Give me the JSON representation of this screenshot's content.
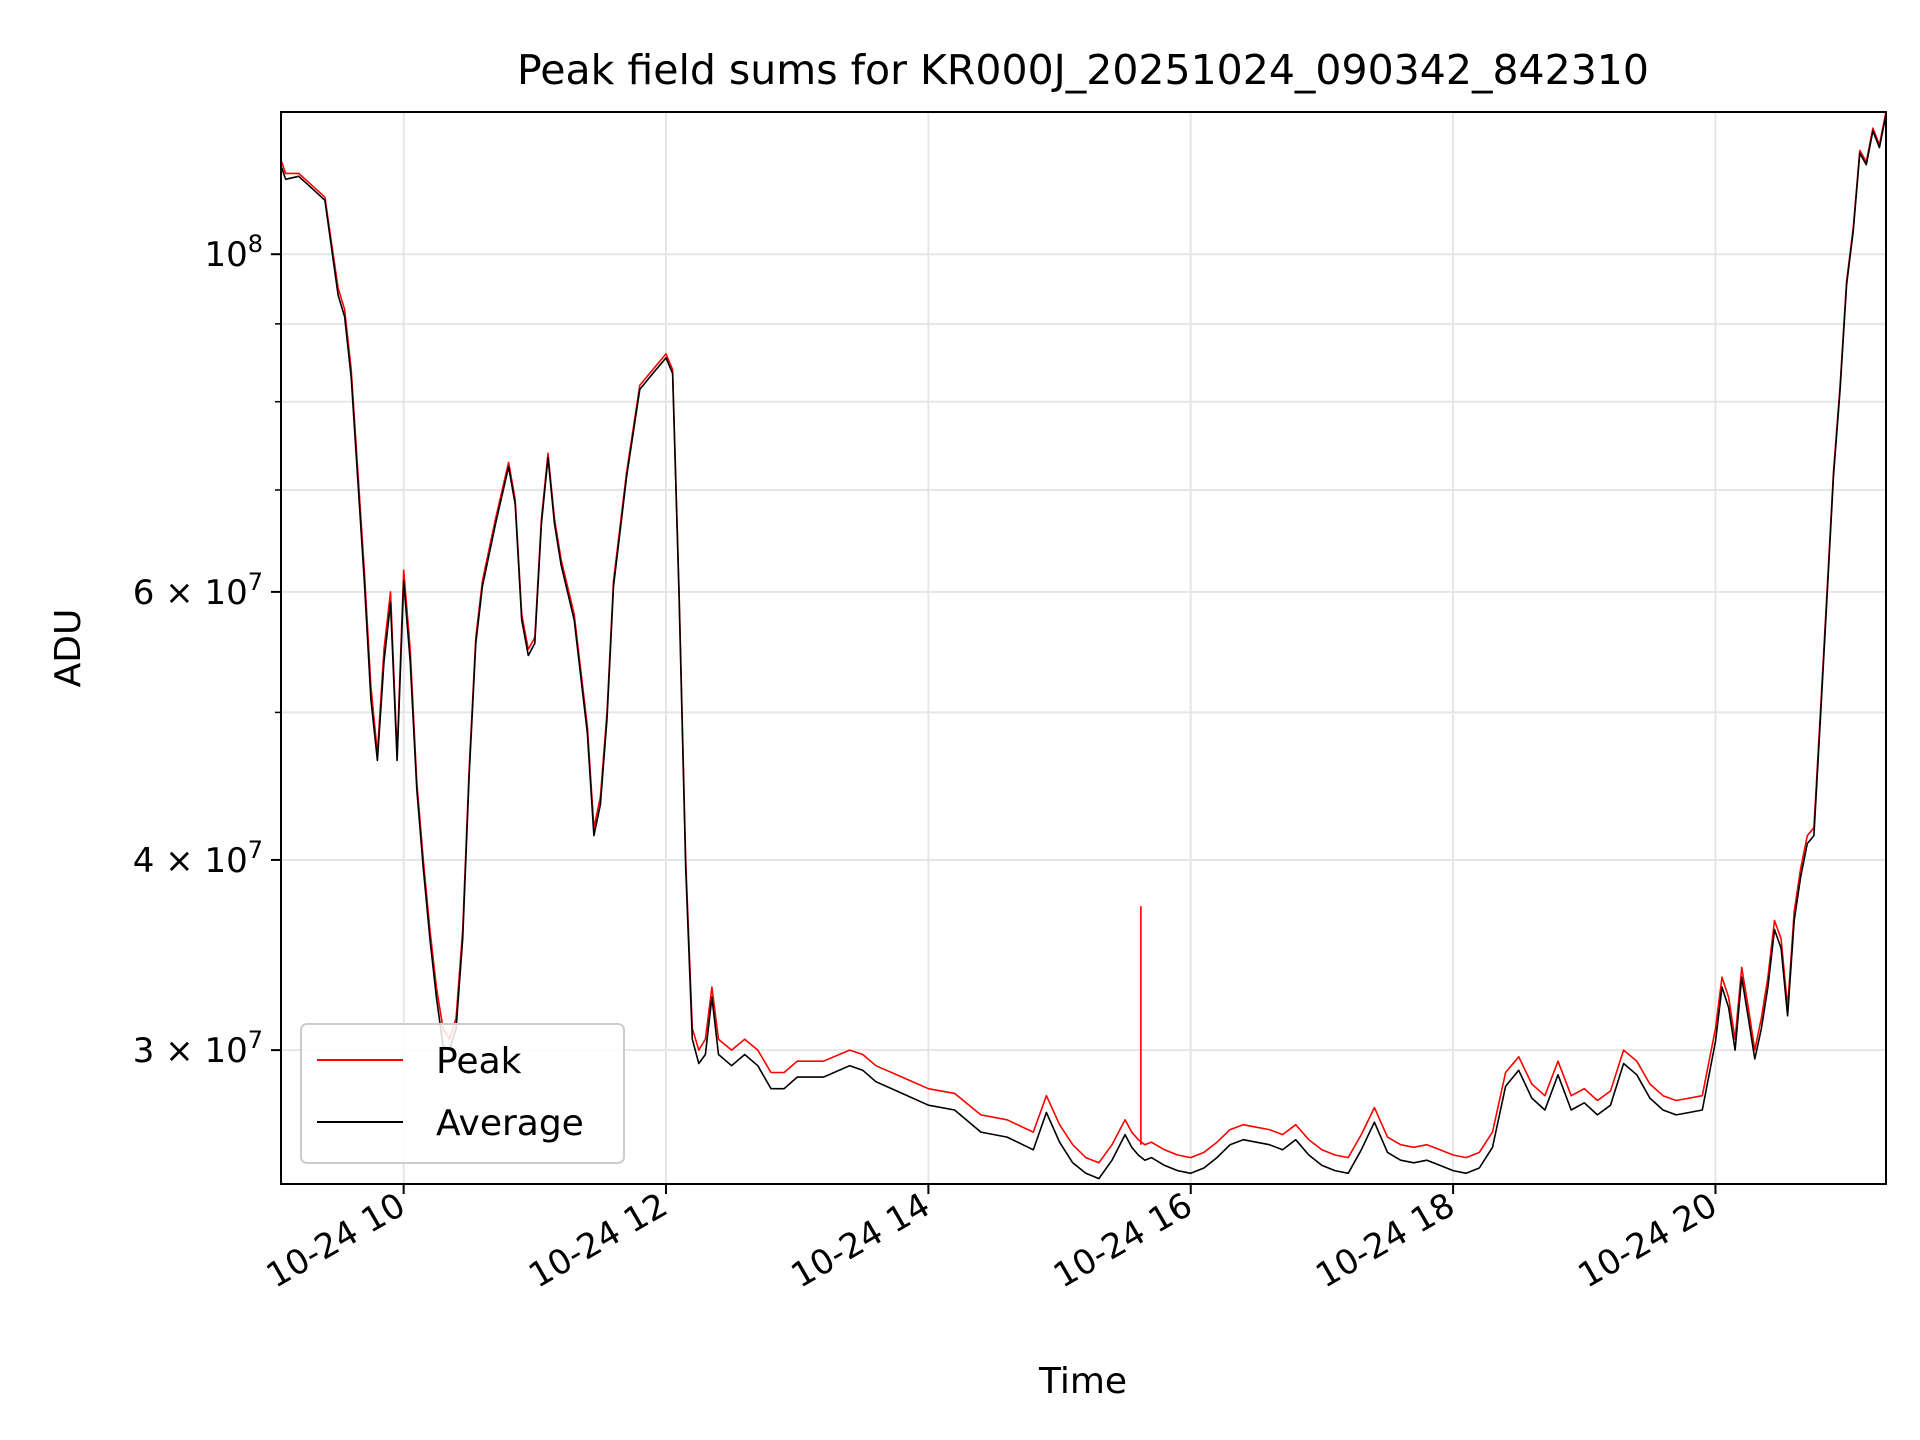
{
  "chart_data": {
    "type": "line",
    "title": "Peak field sums for KR000J_20251024_090342_842310",
    "xlabel": "Time",
    "ylabel": "ADU",
    "yscale": "log",
    "xlim_hours": [
      9.065,
      21.3
    ],
    "ylim": [
      24500000,
      124000000
    ],
    "grid": true,
    "legend_position": "lower-left",
    "x_ticks": [
      {
        "hour": 10,
        "label": "10-24 10"
      },
      {
        "hour": 12,
        "label": "10-24 12"
      },
      {
        "hour": 14,
        "label": "10-24 14"
      },
      {
        "hour": 16,
        "label": "10-24 16"
      },
      {
        "hour": 18,
        "label": "10-24 18"
      },
      {
        "hour": 20,
        "label": "10-24 20"
      }
    ],
    "y_major_ticks": [
      {
        "value": 100000000,
        "base": "10",
        "exp": "8"
      },
      {
        "value": 60000000,
        "base": "6 × 10",
        "exp": "7"
      },
      {
        "value": 40000000,
        "base": "4 × 10",
        "exp": "7"
      },
      {
        "value": 30000000,
        "base": "3 × 10",
        "exp": "7"
      }
    ],
    "y_minor_ticks": [
      90000000,
      80000000,
      70000000,
      50000000
    ],
    "series": [
      {
        "name": "Peak",
        "color": "#ff0000",
        "x": [
          9.07,
          9.1,
          9.2,
          9.3,
          9.4,
          9.5,
          9.55,
          9.6,
          9.7,
          9.75,
          9.8,
          9.85,
          9.9,
          9.95,
          10.0,
          10.05,
          10.1,
          10.15,
          10.2,
          10.25,
          10.3,
          10.35,
          10.4,
          10.45,
          10.5,
          10.55,
          10.6,
          10.7,
          10.8,
          10.85,
          10.9,
          10.95,
          11.0,
          11.05,
          11.1,
          11.15,
          11.2,
          11.3,
          11.4,
          11.45,
          11.5,
          11.55,
          11.6,
          11.7,
          11.8,
          11.9,
          12.0,
          12.05,
          12.1,
          12.15,
          12.2,
          12.25,
          12.3,
          12.35,
          12.4,
          12.5,
          12.6,
          12.7,
          12.8,
          12.9,
          13.0,
          13.2,
          13.4,
          13.5,
          13.6,
          13.8,
          14.0,
          14.2,
          14.4,
          14.6,
          14.8,
          14.9,
          15.0,
          15.1,
          15.2,
          15.3,
          15.4,
          15.5,
          15.55,
          15.6,
          15.65,
          15.7,
          15.8,
          15.9,
          16.0,
          16.1,
          16.2,
          16.3,
          16.4,
          16.5,
          16.6,
          16.7,
          16.8,
          16.9,
          17.0,
          17.1,
          17.2,
          17.3,
          17.4,
          17.5,
          17.6,
          17.7,
          17.8,
          17.9,
          18.0,
          18.1,
          18.2,
          18.3,
          18.4,
          18.5,
          18.6,
          18.7,
          18.8,
          18.9,
          19.0,
          19.1,
          19.2,
          19.3,
          19.4,
          19.5,
          19.6,
          19.7,
          19.8,
          19.9,
          20.0,
          20.05,
          20.1,
          20.15,
          20.2,
          20.25,
          20.3,
          20.35,
          20.4,
          20.45,
          20.5,
          20.55,
          20.6,
          20.65,
          20.7,
          20.75,
          20.8,
          20.85,
          20.9,
          20.95,
          21.0,
          21.05,
          21.1,
          21.15,
          21.2,
          21.25,
          21.3
        ],
        "values": [
          115000000,
          113000000,
          113000000,
          111000000,
          109000000,
          95000000,
          92000000,
          84000000,
          62000000,
          52000000,
          47000000,
          55000000,
          60000000,
          47000000,
          62000000,
          55000000,
          45000000,
          40000000,
          36000000,
          33000000,
          31000000,
          30500000,
          31500000,
          36000000,
          46000000,
          56000000,
          61000000,
          67000000,
          73000000,
          69000000,
          58000000,
          55000000,
          56000000,
          67000000,
          74000000,
          67000000,
          63000000,
          58000000,
          49000000,
          42000000,
          44000000,
          50000000,
          61000000,
          72000000,
          82000000,
          84000000,
          86000000,
          84000000,
          60000000,
          40000000,
          31000000,
          30000000,
          30500000,
          33000000,
          30500000,
          30000000,
          30500000,
          30000000,
          29000000,
          29000000,
          29500000,
          29500000,
          30000000,
          29800000,
          29300000,
          28800000,
          28300000,
          28100000,
          27200000,
          27000000,
          26500000,
          28000000,
          26800000,
          26000000,
          25500000,
          25300000,
          26000000,
          27000000,
          26500000,
          26200000,
          26000000,
          26100000,
          25800000,
          25600000,
          25500000,
          25700000,
          26100000,
          26600000,
          26800000,
          26700000,
          26600000,
          26400000,
          26800000,
          26200000,
          25800000,
          25600000,
          25500000,
          26400000,
          27500000,
          26300000,
          26000000,
          25900000,
          26000000,
          25800000,
          25600000,
          25500000,
          25700000,
          26500000,
          29000000,
          29700000,
          28500000,
          28000000,
          29500000,
          28000000,
          28300000,
          27800000,
          28200000,
          30000000,
          29500000,
          28500000,
          28000000,
          27800000,
          27900000,
          28000000,
          31000000,
          33500000,
          32500000,
          30500000,
          34000000,
          32000000,
          30000000,
          31500000,
          33500000,
          36500000,
          35500000,
          32000000,
          37000000,
          39500000,
          41500000,
          42000000,
          50000000,
          60000000,
          72000000,
          82000000,
          96000000,
          104000000,
          117000000,
          115000000,
          121000000,
          118000000,
          124000000
        ]
      },
      {
        "name": "Average",
        "color": "#000000",
        "x": [
          9.07,
          9.1,
          9.2,
          9.3,
          9.4,
          9.5,
          9.55,
          9.6,
          9.7,
          9.75,
          9.8,
          9.85,
          9.9,
          9.95,
          10.0,
          10.05,
          10.1,
          10.15,
          10.2,
          10.25,
          10.3,
          10.35,
          10.4,
          10.45,
          10.5,
          10.55,
          10.6,
          10.7,
          10.8,
          10.85,
          10.9,
          10.95,
          11.0,
          11.05,
          11.1,
          11.15,
          11.2,
          11.3,
          11.4,
          11.45,
          11.5,
          11.55,
          11.6,
          11.7,
          11.8,
          11.9,
          12.0,
          12.05,
          12.1,
          12.15,
          12.2,
          12.25,
          12.3,
          12.35,
          12.4,
          12.5,
          12.6,
          12.7,
          12.8,
          12.9,
          13.0,
          13.2,
          13.4,
          13.5,
          13.6,
          13.8,
          14.0,
          14.2,
          14.4,
          14.6,
          14.8,
          14.9,
          15.0,
          15.1,
          15.2,
          15.3,
          15.4,
          15.5,
          15.55,
          15.6,
          15.65,
          15.7,
          15.8,
          15.9,
          16.0,
          16.1,
          16.2,
          16.3,
          16.4,
          16.5,
          16.6,
          16.7,
          16.8,
          16.9,
          17.0,
          17.1,
          17.2,
          17.3,
          17.4,
          17.5,
          17.6,
          17.7,
          17.8,
          17.9,
          18.0,
          18.1,
          18.2,
          18.3,
          18.4,
          18.5,
          18.6,
          18.7,
          18.8,
          18.9,
          19.0,
          19.1,
          19.2,
          19.3,
          19.4,
          19.5,
          19.6,
          19.7,
          19.8,
          19.9,
          20.0,
          20.05,
          20.1,
          20.15,
          20.2,
          20.25,
          20.3,
          20.35,
          20.4,
          20.45,
          20.5,
          20.55,
          20.6,
          20.65,
          20.7,
          20.75,
          20.8,
          20.85,
          20.9,
          20.95,
          21.0,
          21.05,
          21.1,
          21.15,
          21.2,
          21.25,
          21.3
        ],
        "values": [
          114000000,
          112000000,
          112500000,
          110500000,
          108500000,
          94000000,
          91000000,
          83000000,
          61000000,
          51000000,
          46500000,
          54000000,
          59000000,
          46500000,
          61000000,
          54000000,
          44500000,
          39500000,
          35500000,
          32500000,
          30200000,
          30000000,
          31000000,
          35500000,
          45500000,
          55500000,
          60500000,
          66500000,
          72500000,
          68500000,
          57500000,
          54500000,
          55500000,
          66500000,
          73500000,
          66500000,
          62500000,
          57500000,
          48500000,
          41500000,
          43500000,
          49500000,
          60500000,
          71500000,
          81500000,
          83500000,
          85500000,
          83500000,
          59500000,
          39500000,
          30500000,
          29400000,
          29800000,
          32500000,
          29800000,
          29300000,
          29800000,
          29300000,
          28300000,
          28300000,
          28800000,
          28800000,
          29300000,
          29100000,
          28600000,
          28100000,
          27600000,
          27400000,
          26500000,
          26300000,
          25800000,
          27300000,
          26100000,
          25300000,
          24900000,
          24700000,
          25400000,
          26400000,
          25900000,
          25600000,
          25400000,
          25500000,
          25200000,
          25000000,
          24900000,
          25100000,
          25500000,
          26000000,
          26200000,
          26100000,
          26000000,
          25800000,
          26200000,
          25600000,
          25200000,
          25000000,
          24900000,
          25800000,
          26900000,
          25700000,
          25400000,
          25300000,
          25400000,
          25200000,
          25000000,
          24900000,
          25100000,
          25900000,
          28400000,
          29100000,
          27900000,
          27400000,
          28900000,
          27400000,
          27700000,
          27200000,
          27600000,
          29400000,
          28900000,
          27900000,
          27400000,
          27200000,
          27300000,
          27400000,
          30400000,
          33000000,
          32000000,
          30000000,
          33500000,
          31500000,
          29600000,
          31000000,
          33000000,
          36000000,
          35000000,
          31600000,
          36500000,
          39000000,
          41000000,
          41500000,
          49500000,
          59500000,
          71500000,
          81500000,
          95500000,
          103500000,
          116500000,
          114500000,
          120500000,
          117500000,
          123500000
        ]
      }
    ],
    "annotations": [
      {
        "note": "spike",
        "series": "Peak",
        "hour": 15.62,
        "value": 37300000
      }
    ]
  }
}
